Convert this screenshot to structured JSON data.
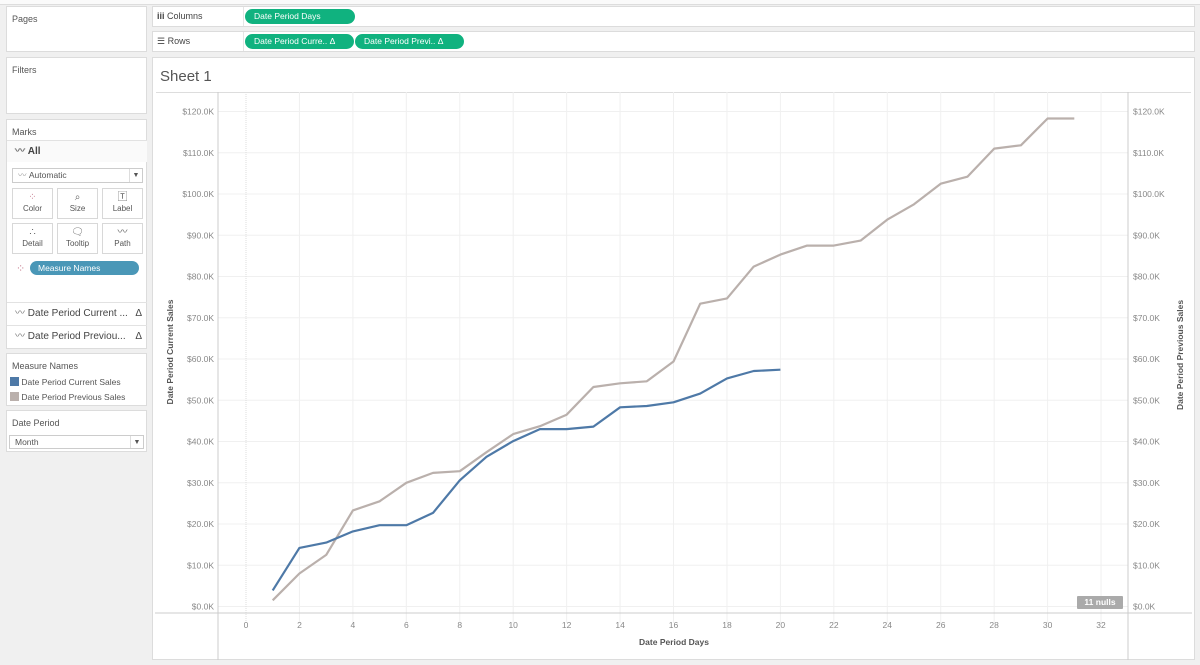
{
  "pages": {
    "title": "Pages"
  },
  "filters": {
    "title": "Filters"
  },
  "shelves": {
    "columns_label": "Columns",
    "rows_label": "Rows",
    "columns_pills": [
      "Date Period Days"
    ],
    "rows_pills": [
      "Date Period Curre.. Δ",
      "Date Period Previ.. Δ"
    ]
  },
  "marks": {
    "title": "Marks",
    "all_label": "All",
    "mark_type": "Automatic",
    "buttons": [
      "Color",
      "Size",
      "Label",
      "Detail",
      "Tooltip",
      "Path"
    ],
    "color_pill": "Measure Names",
    "cards": [
      "Date Period Current ...",
      "Date Period Previou..."
    ],
    "delta": "Δ"
  },
  "legend": {
    "title": "Measure Names",
    "items": [
      {
        "label": "Date Period Current Sales",
        "color": "#4e79a7"
      },
      {
        "label": "Date Period Previous Sales",
        "color": "#bab0ac"
      }
    ]
  },
  "parameter": {
    "title": "Date Period",
    "value": "Month"
  },
  "sheet": {
    "title": "Sheet 1",
    "nulls_badge": "11 nulls"
  },
  "chart_data": {
    "type": "line",
    "xlabel": "Date Period Days",
    "ylabel_left": "Date Period Current Sales",
    "ylabel_right": "Date Period Previous Sales",
    "xlim": [
      -1,
      33
    ],
    "ylim": [
      0,
      120000
    ],
    "x_ticks": [
      0,
      2,
      4,
      6,
      8,
      10,
      12,
      14,
      16,
      18,
      20,
      22,
      24,
      26,
      28,
      30,
      32
    ],
    "y_ticks": [
      "$0.0K",
      "$10.0K",
      "$20.0K",
      "$30.0K",
      "$40.0K",
      "$50.0K",
      "$60.0K",
      "$70.0K",
      "$80.0K",
      "$90.0K",
      "$100.0K",
      "$110.0K",
      "$120.0K"
    ],
    "grid": true,
    "series": [
      {
        "name": "Date Period Current Sales",
        "color": "#4e79a7",
        "x": [
          1,
          2,
          3,
          4,
          5,
          6,
          7,
          8,
          9,
          10,
          11,
          12,
          13,
          14,
          15,
          16,
          17,
          18,
          19,
          20
        ],
        "values": [
          3900,
          14200,
          15500,
          18200,
          19700,
          19700,
          22700,
          30600,
          36300,
          40100,
          43000,
          43000,
          43600,
          48300,
          48600,
          49500,
          51600,
          55300,
          57100,
          57400
        ]
      },
      {
        "name": "Date Period Previous Sales",
        "color": "#bab0ac",
        "x": [
          1,
          2,
          3,
          4,
          5,
          6,
          7,
          8,
          9,
          10,
          11,
          12,
          13,
          14,
          15,
          16,
          17,
          18,
          19,
          20,
          21,
          22,
          23,
          24,
          25,
          26,
          27,
          28,
          29,
          30,
          31
        ],
        "values": [
          1500,
          8000,
          12500,
          23300,
          25500,
          30000,
          32400,
          32800,
          37400,
          41800,
          43700,
          46500,
          53200,
          54100,
          54600,
          59400,
          73400,
          74700,
          82400,
          85300,
          87500,
          87500,
          88700,
          93800,
          97500,
          102500,
          104200,
          111000,
          111800,
          118300,
          118300
        ]
      }
    ]
  }
}
